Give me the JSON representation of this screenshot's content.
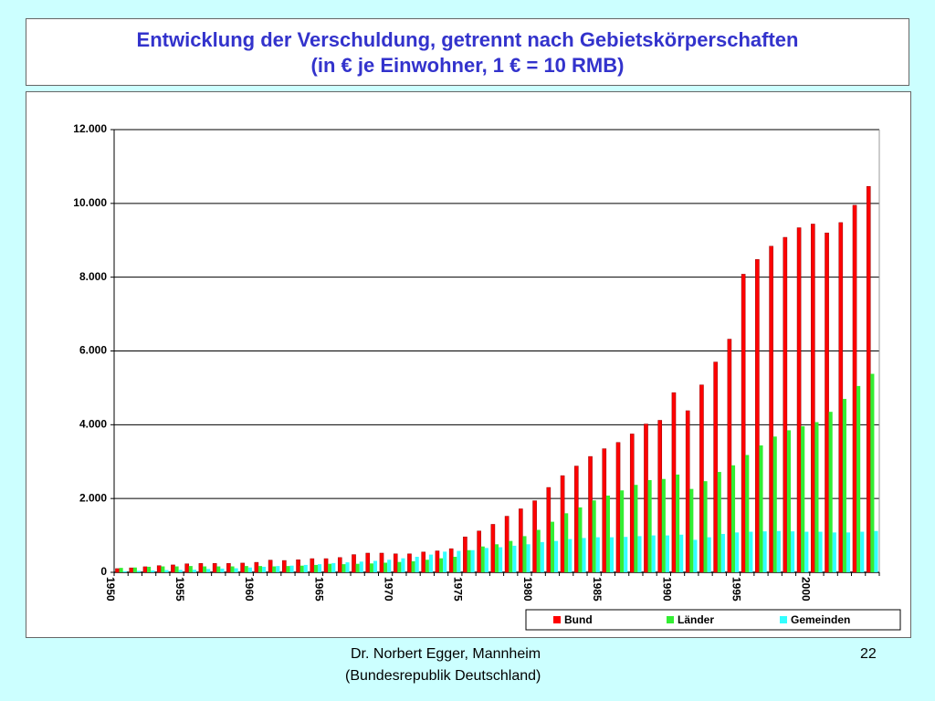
{
  "title": "Entwicklung der Verschuldung, getrennt nach Gebietskörperschaften",
  "subtitle": "(in € je Einwohner, 1 € = 10 RMB)",
  "footer": {
    "author": "Dr. Norbert Egger, Mannheim",
    "note": "(Bundesrepublik Deutschland)",
    "page": "22"
  },
  "chart_data": {
    "type": "bar",
    "categories": [
      "1950",
      null,
      null,
      null,
      null,
      "1955",
      null,
      null,
      null,
      null,
      "1960",
      null,
      null,
      null,
      null,
      "1965",
      null,
      null,
      null,
      null,
      "1970",
      null,
      null,
      null,
      null,
      "1975",
      null,
      null,
      null,
      null,
      "1980",
      null,
      null,
      null,
      null,
      "1985",
      null,
      null,
      null,
      null,
      "1990",
      null,
      null,
      null,
      null,
      "1995",
      null,
      null,
      null,
      null,
      "2000",
      null,
      null,
      null,
      null
    ],
    "series": [
      {
        "name": "Bund",
        "color": "#ff0000",
        "values": [
          100,
          120,
          150,
          180,
          200,
          230,
          240,
          240,
          240,
          250,
          270,
          330,
          320,
          340,
          370,
          370,
          400,
          480,
          520,
          520,
          500,
          500,
          550,
          580,
          640,
          960,
          1120,
          1300,
          1520,
          1720,
          1940,
          2300,
          2620,
          2880,
          3140,
          3350,
          3520,
          3750,
          4020,
          4120,
          4870,
          4380,
          5080,
          5700,
          6320,
          8080,
          8480,
          8840,
          9080,
          9340,
          9440,
          9200,
          9480,
          9950,
          10460
        ]
      },
      {
        "name": "Länder",
        "color": "#33ee33",
        "values": [
          120,
          130,
          150,
          160,
          160,
          170,
          160,
          160,
          160,
          170,
          170,
          160,
          170,
          180,
          200,
          230,
          220,
          230,
          240,
          260,
          280,
          300,
          340,
          380,
          420,
          600,
          700,
          760,
          850,
          980,
          1150,
          1370,
          1600,
          1760,
          1950,
          2080,
          2220,
          2370,
          2500,
          2530,
          2650,
          2260,
          2470,
          2720,
          2900,
          3180,
          3440,
          3680,
          3850,
          3960,
          4070,
          4350,
          4700,
          5050,
          5380
        ]
      },
      {
        "name": "Gemeinden",
        "color": "#33ffff",
        "values": [
          30,
          40,
          50,
          60,
          65,
          70,
          90,
          100,
          110,
          130,
          150,
          170,
          180,
          200,
          220,
          250,
          270,
          290,
          310,
          340,
          380,
          420,
          480,
          560,
          580,
          600,
          660,
          680,
          720,
          760,
          820,
          850,
          900,
          930,
          950,
          950,
          960,
          980,
          1000,
          1000,
          1020,
          880,
          950,
          1040,
          1080,
          1100,
          1110,
          1120,
          1110,
          1100,
          1100,
          1080,
          1080,
          1100,
          1120
        ]
      }
    ],
    "ylim": [
      0,
      12000
    ],
    "yticks": [
      0,
      {
        "value": 2000,
        "label": "2.000"
      },
      {
        "value": 4000,
        "label": "4.000"
      },
      {
        "value": 6000,
        "label": "6.000"
      },
      {
        "value": 8000,
        "label": "8.000"
      },
      {
        "value": 10000,
        "label": "10.000"
      },
      {
        "value": 12000,
        "label": "12.000"
      }
    ],
    "grid": true,
    "legend": "bottom-right"
  }
}
